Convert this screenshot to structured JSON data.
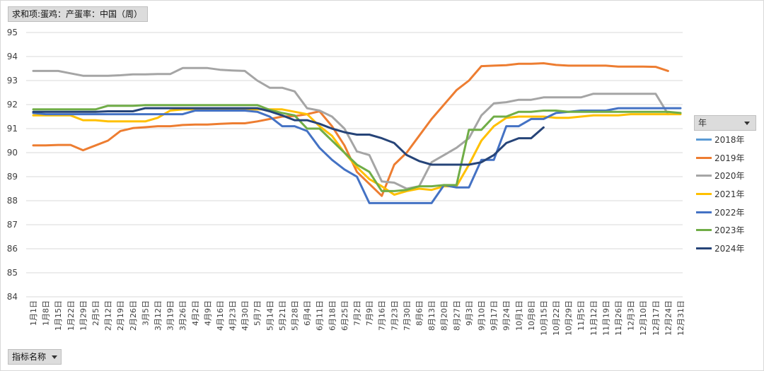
{
  "pivot_value_field": "求和项:蛋鸡：产蛋率：中国（周）",
  "pivot_row_field": "指标名称",
  "legend_title": "年",
  "chart_data": {
    "type": "line",
    "title": "",
    "xlabel": "",
    "ylabel": "",
    "ylim": [
      84,
      95
    ],
    "yticks": [
      84,
      85,
      86,
      87,
      88,
      89,
      90,
      91,
      92,
      93,
      94,
      95
    ],
    "grid": true,
    "legend_position": "right",
    "categories": [
      "1月1日",
      "1月8日",
      "1月15日",
      "1月22日",
      "1月29日",
      "2月5日",
      "2月12日",
      "2月19日",
      "2月26日",
      "3月5日",
      "3月12日",
      "3月19日",
      "3月26日",
      "4月2日",
      "4月9日",
      "4月16日",
      "4月23日",
      "4月30日",
      "5月7日",
      "5月14日",
      "5月21日",
      "5月28日",
      "6月4日",
      "6月11日",
      "6月18日",
      "6月25日",
      "7月2日",
      "7月9日",
      "7月16日",
      "7月23日",
      "7月30日",
      "8月6日",
      "8月13日",
      "8月20日",
      "8月27日",
      "9月3日",
      "9月10日",
      "9月17日",
      "9月24日",
      "10月1日",
      "10月8日",
      "10月15日",
      "10月22日",
      "10月29日",
      "11月5日",
      "11月12日",
      "11月19日",
      "11月26日",
      "12月3日",
      "12月10日",
      "12月17日",
      "12月24日",
      "12月31日"
    ],
    "series": [
      {
        "name": "2018年",
        "color": "#5b9bd5",
        "values": [
          null,
          null,
          null,
          null,
          null,
          null,
          null,
          null,
          null,
          null,
          null,
          null,
          null,
          null,
          null,
          null,
          null,
          null,
          null,
          null,
          null,
          null,
          null,
          null,
          null,
          null,
          null,
          null,
          null,
          null,
          null,
          null,
          null,
          null,
          null,
          null,
          null,
          null,
          null,
          null,
          null,
          null,
          null,
          null,
          null,
          null,
          null,
          null,
          null,
          null,
          null,
          null,
          null
        ]
      },
      {
        "name": "2019年",
        "color": "#ed7d31",
        "values": [
          90.3,
          90.3,
          90.32,
          90.32,
          90.1,
          90.3,
          90.5,
          90.9,
          91.02,
          91.06,
          91.1,
          91.1,
          91.15,
          91.17,
          91.17,
          91.2,
          91.22,
          91.22,
          91.3,
          91.4,
          91.5,
          91.52,
          91.6,
          91.72,
          91.1,
          90.3,
          89.2,
          88.7,
          88.2,
          89.5,
          90.0,
          90.7,
          91.4,
          92.0,
          92.6,
          93.0,
          93.6,
          93.62,
          93.64,
          93.7,
          93.7,
          93.72,
          93.65,
          93.62,
          93.62,
          93.62,
          93.62,
          93.58,
          93.58,
          93.58,
          93.57,
          93.4,
          null
        ]
      },
      {
        "name": "2020年",
        "color": "#a5a5a5",
        "values": [
          93.4,
          93.4,
          93.4,
          93.3,
          93.2,
          93.2,
          93.2,
          93.22,
          93.26,
          93.26,
          93.27,
          93.27,
          93.52,
          93.52,
          93.52,
          93.45,
          93.42,
          93.4,
          93.0,
          92.7,
          92.7,
          92.55,
          91.85,
          91.75,
          91.5,
          91.0,
          90.05,
          89.9,
          88.8,
          88.75,
          88.5,
          88.6,
          89.6,
          89.9,
          90.2,
          90.6,
          91.55,
          92.05,
          92.1,
          92.2,
          92.2,
          92.3,
          92.3,
          92.3,
          92.3,
          92.45,
          92.45,
          92.45,
          92.45,
          92.45,
          92.45,
          91.6,
          null
        ]
      },
      {
        "name": "2021年",
        "color": "#ffc000",
        "values": [
          91.55,
          91.55,
          91.55,
          91.55,
          91.35,
          91.35,
          91.3,
          91.3,
          91.3,
          91.3,
          91.45,
          91.75,
          91.8,
          91.8,
          91.8,
          91.8,
          91.8,
          91.8,
          91.8,
          91.8,
          91.8,
          91.7,
          91.6,
          91.1,
          90.7,
          90.0,
          89.4,
          88.9,
          88.6,
          88.25,
          88.4,
          88.5,
          88.45,
          88.6,
          88.6,
          89.5,
          90.5,
          91.1,
          91.45,
          91.5,
          91.5,
          91.5,
          91.45,
          91.45,
          91.5,
          91.55,
          91.55,
          91.55,
          91.6,
          91.6,
          91.6,
          91.6,
          91.6
        ]
      },
      {
        "name": "2022年",
        "color": "#4472c4",
        "values": [
          91.65,
          91.6,
          91.6,
          91.6,
          91.6,
          91.6,
          91.6,
          91.6,
          91.6,
          91.6,
          91.6,
          91.6,
          91.6,
          91.75,
          91.75,
          91.75,
          91.75,
          91.75,
          91.7,
          91.5,
          91.1,
          91.1,
          90.9,
          90.2,
          89.7,
          89.3,
          89.0,
          87.9,
          87.9,
          87.9,
          87.9,
          87.9,
          87.9,
          88.65,
          88.55,
          88.55,
          89.7,
          89.7,
          91.1,
          91.1,
          91.4,
          91.4,
          91.65,
          91.7,
          91.75,
          91.75,
          91.75,
          91.85,
          91.85,
          91.85,
          91.85,
          91.85,
          91.85
        ]
      },
      {
        "name": "2023年",
        "color": "#70ad47",
        "values": [
          91.8,
          91.8,
          91.8,
          91.8,
          91.8,
          91.8,
          91.95,
          91.95,
          91.95,
          91.98,
          91.98,
          91.98,
          91.98,
          91.98,
          91.98,
          91.98,
          91.98,
          91.98,
          91.98,
          91.78,
          91.65,
          91.55,
          91.0,
          91.0,
          90.5,
          90.0,
          89.5,
          89.2,
          88.4,
          88.4,
          88.45,
          88.6,
          88.6,
          88.65,
          88.65,
          90.95,
          90.95,
          91.5,
          91.5,
          91.7,
          91.7,
          91.75,
          91.75,
          91.7,
          91.7,
          91.7,
          91.7,
          91.7,
          91.7,
          91.7,
          91.7,
          91.7,
          91.65
        ]
      },
      {
        "name": "2024年",
        "color": "#264478",
        "values": [
          91.7,
          91.7,
          91.7,
          91.7,
          91.7,
          91.7,
          91.72,
          91.72,
          91.72,
          91.85,
          91.85,
          91.85,
          91.85,
          91.85,
          91.85,
          91.85,
          91.85,
          91.85,
          91.85,
          91.72,
          91.55,
          91.35,
          91.35,
          91.2,
          91.0,
          90.85,
          90.75,
          90.75,
          90.6,
          90.4,
          89.9,
          89.65,
          89.5,
          89.5,
          89.5,
          89.5,
          89.6,
          89.9,
          90.4,
          90.6,
          90.6,
          91.05,
          null,
          null,
          null,
          null,
          null,
          null,
          null,
          null,
          null,
          null,
          null
        ]
      }
    ]
  }
}
